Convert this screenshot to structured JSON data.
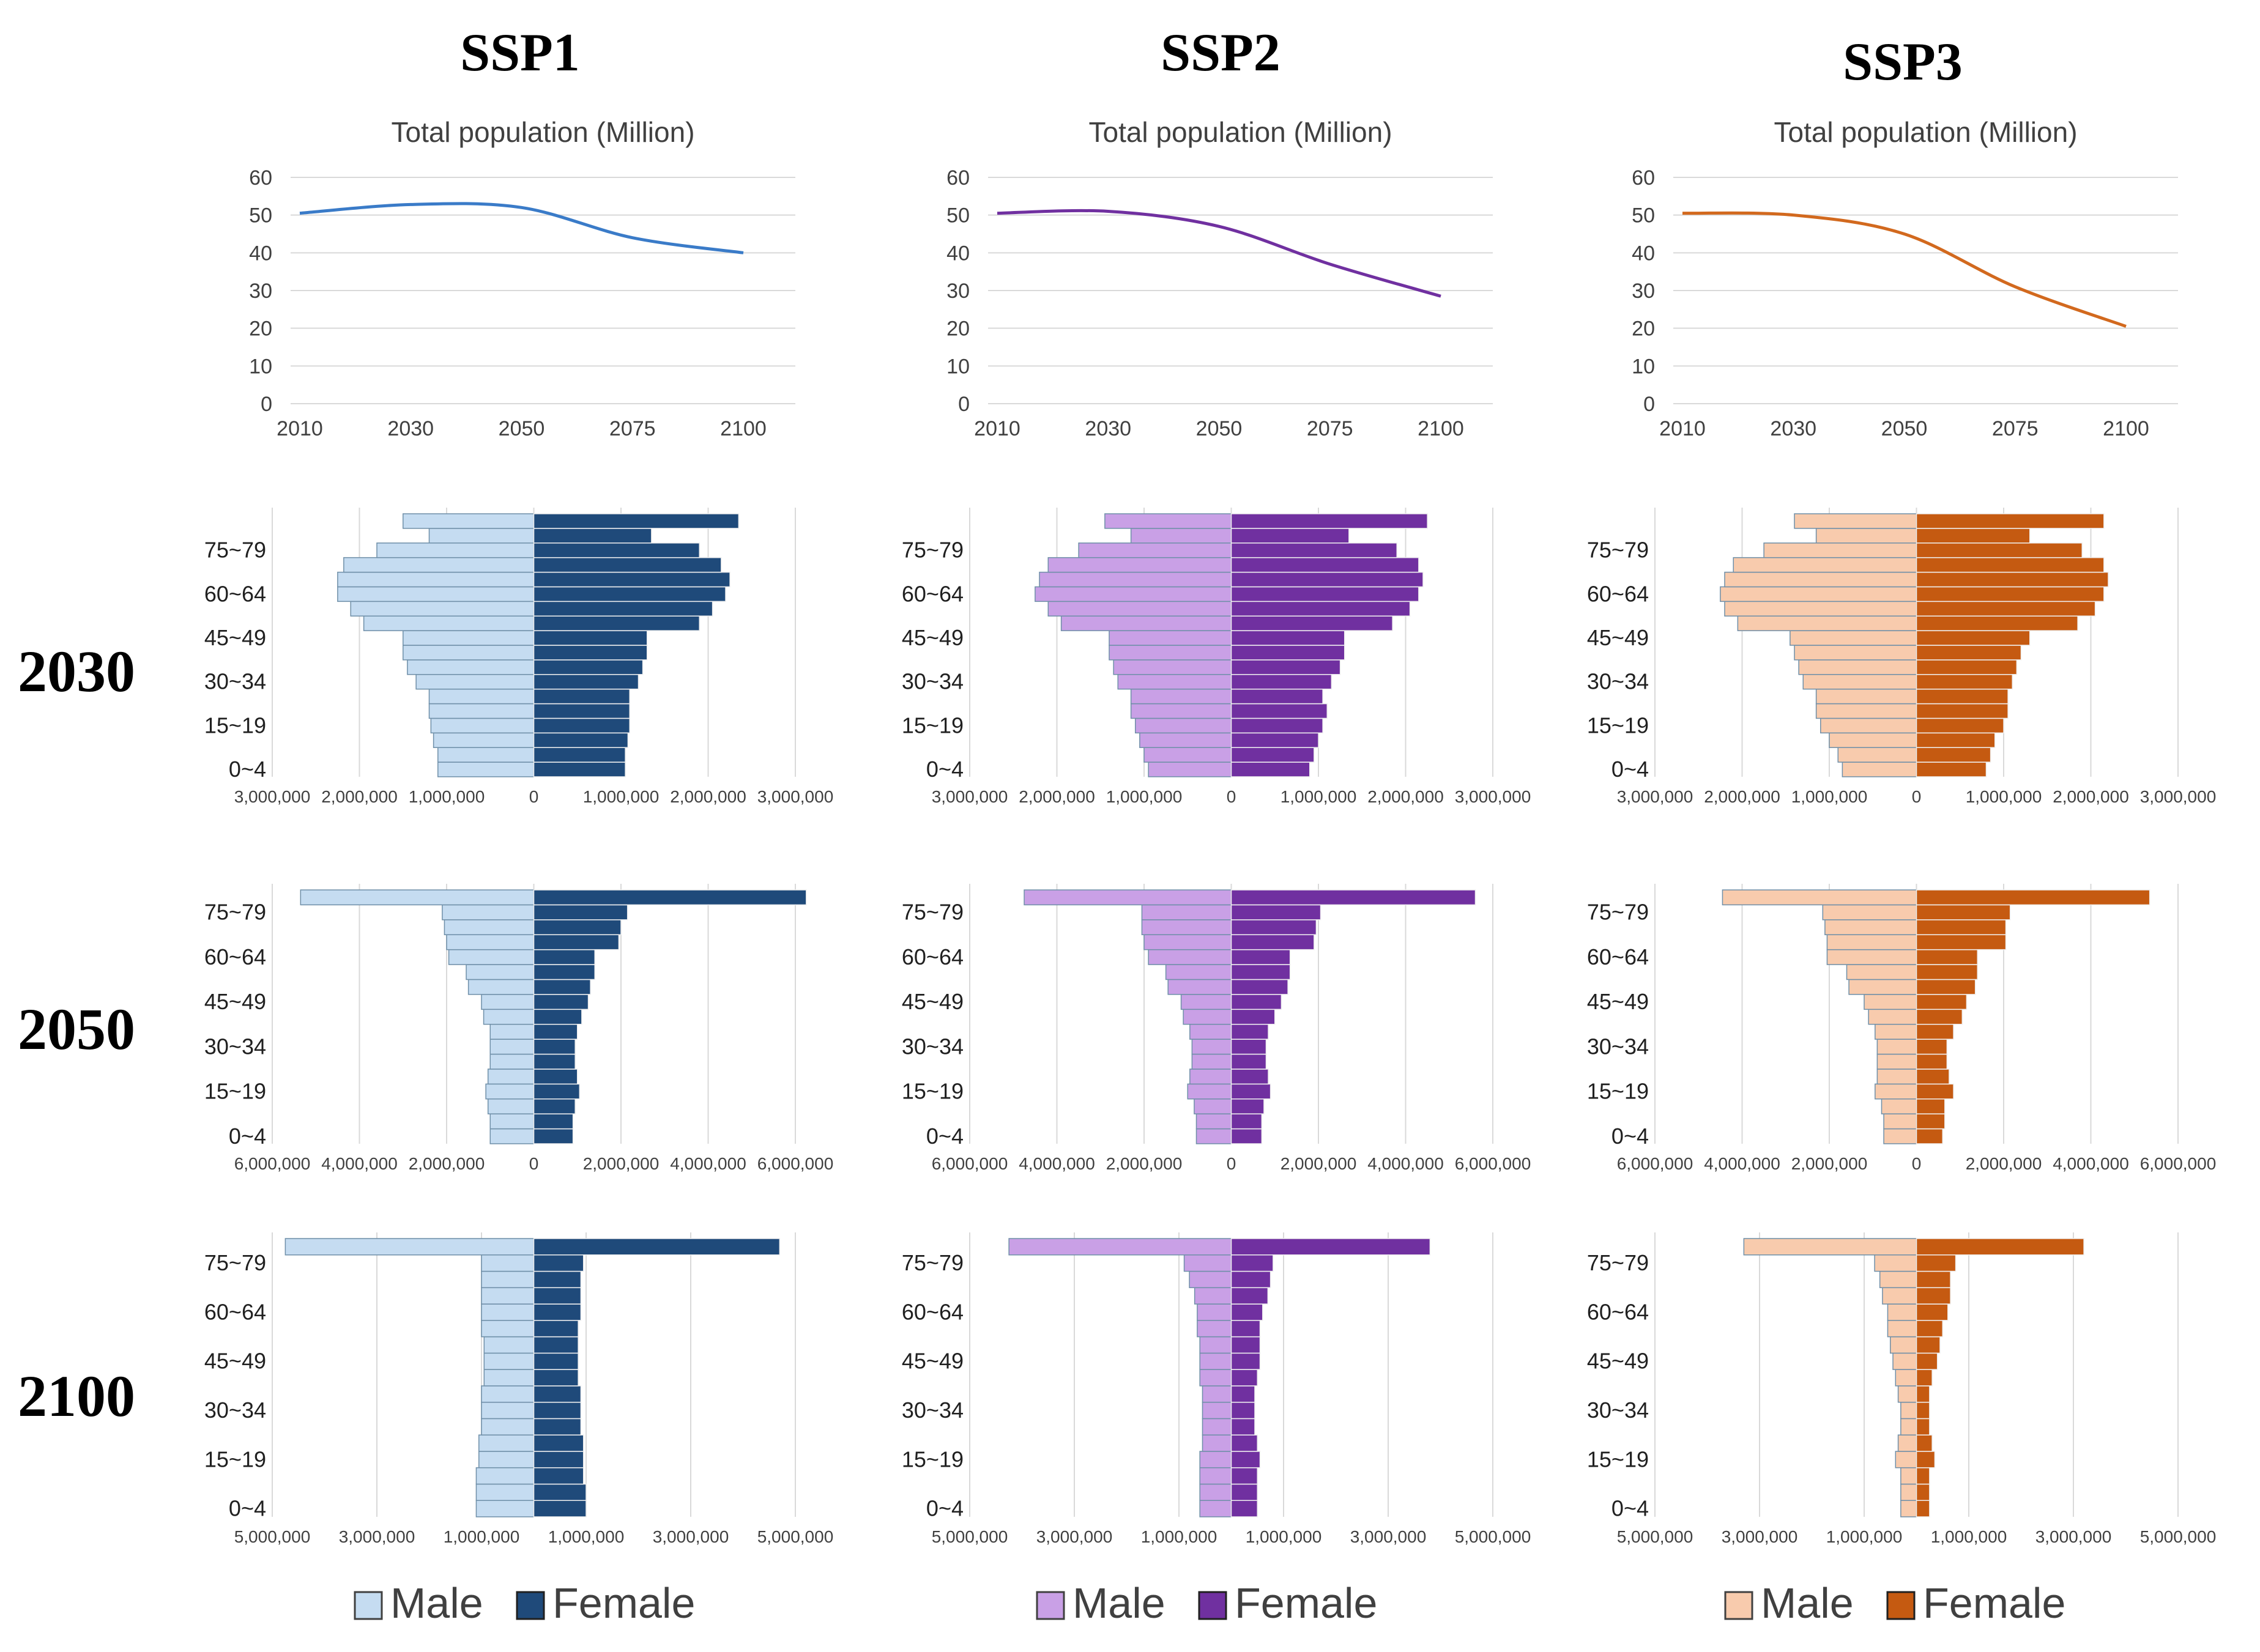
{
  "figure": {
    "scenario_labels": [
      "SSP1",
      "SSP2",
      "SSP3"
    ],
    "year_labels": [
      "2030",
      "2050",
      "2100"
    ],
    "legends": [
      {
        "male": "Male",
        "female": "Female"
      },
      {
        "male": "Male",
        "female": "Female"
      },
      {
        "male": "Male",
        "female": "Female"
      }
    ]
  },
  "colors": {
    "ssp1": {
      "line": "#3a7bc8",
      "male": "#c5dcf1",
      "female": "#1f4a7a"
    },
    "ssp2": {
      "line": "#7030a0",
      "male": "#c9a0e6",
      "female": "#7030a0"
    },
    "ssp3": {
      "line": "#d2691e",
      "male": "#f8cbad",
      "female": "#c55a11"
    }
  },
  "chart_data": [
    {
      "type": "line",
      "scenario": "SSP1",
      "title": "Total population (Million)",
      "x": [
        2010,
        2030,
        2050,
        2075,
        2100
      ],
      "y": [
        50.5,
        52.8,
        52,
        44,
        40
      ],
      "ylim": [
        0,
        60
      ],
      "yticks": [
        "0",
        "10",
        "20",
        "30",
        "40",
        "50",
        "60"
      ],
      "xtick_labels": [
        "2010",
        "2030",
        "2050",
        "2075",
        "2100"
      ]
    },
    {
      "type": "line",
      "scenario": "SSP2",
      "title": "Total population (Million)",
      "x": [
        2010,
        2030,
        2050,
        2075,
        2100
      ],
      "y": [
        50.5,
        51,
        47,
        37,
        28.5
      ],
      "ylim": [
        0,
        60
      ],
      "yticks": [
        "0",
        "10",
        "20",
        "30",
        "40",
        "50",
        "60"
      ],
      "xtick_labels": [
        "2010",
        "2030",
        "2050",
        "2075",
        "2100"
      ]
    },
    {
      "type": "line",
      "scenario": "SSP3",
      "title": "Total population (Million)",
      "x": [
        2010,
        2030,
        2050,
        2075,
        2100
      ],
      "y": [
        50.5,
        50,
        45,
        31,
        20.5
      ],
      "ylim": [
        0,
        60
      ],
      "yticks": [
        "0",
        "10",
        "20",
        "30",
        "40",
        "50",
        "60"
      ],
      "xtick_labels": [
        "2010",
        "2030",
        "2050",
        "2075",
        "2100"
      ]
    },
    {
      "type": "bar",
      "subtype": "population-pyramid",
      "scenario": "SSP1",
      "year": "2030",
      "age_labels": [
        "0~4",
        "15~19",
        "30~34",
        "45~49",
        "60~64",
        "75~79"
      ],
      "male": [
        1100000,
        1100000,
        1150000,
        1180000,
        1200000,
        1200000,
        1350000,
        1450000,
        1500000,
        1500000,
        1950000,
        2100000,
        2250000,
        2250000,
        2180000,
        1800000,
        1200000,
        1500000
      ],
      "female": [
        1050000,
        1050000,
        1080000,
        1100000,
        1100000,
        1100000,
        1200000,
        1250000,
        1300000,
        1300000,
        1900000,
        2050000,
        2200000,
        2250000,
        2150000,
        1900000,
        1350000,
        2350000
      ],
      "xlim": [
        -3000000,
        3000000
      ],
      "xtick_labels": [
        "3,000,000",
        "2,000,000",
        "1,000,000",
        "0",
        "1,000,000",
        "2,000,000",
        "3,000,000"
      ]
    },
    {
      "type": "bar",
      "subtype": "population-pyramid",
      "scenario": "SSP2",
      "year": "2030",
      "age_labels": [
        "0~4",
        "15~19",
        "30~34",
        "45~49",
        "60~64",
        "75~79"
      ],
      "male": [
        950000,
        1000000,
        1050000,
        1100000,
        1150000,
        1150000,
        1300000,
        1350000,
        1400000,
        1400000,
        1950000,
        2100000,
        2250000,
        2200000,
        2100000,
        1750000,
        1150000,
        1450000
      ],
      "female": [
        900000,
        950000,
        1000000,
        1050000,
        1100000,
        1050000,
        1150000,
        1250000,
        1300000,
        1300000,
        1850000,
        2050000,
        2150000,
        2200000,
        2150000,
        1900000,
        1350000,
        2250000
      ],
      "xlim": [
        -3000000,
        3000000
      ],
      "xtick_labels": [
        "3,000,000",
        "2,000,000",
        "1,000,000",
        "0",
        "1,000,000",
        "2,000,000",
        "3,000,000"
      ]
    },
    {
      "type": "bar",
      "subtype": "population-pyramid",
      "scenario": "SSP3",
      "year": "2030",
      "age_labels": [
        "0~4",
        "15~19",
        "30~34",
        "45~49",
        "60~64",
        "75~79"
      ],
      "male": [
        850000,
        900000,
        1000000,
        1100000,
        1150000,
        1150000,
        1300000,
        1350000,
        1400000,
        1450000,
        2050000,
        2200000,
        2250000,
        2200000,
        2100000,
        1750000,
        1150000,
        1400000
      ],
      "female": [
        800000,
        850000,
        900000,
        1000000,
        1050000,
        1050000,
        1100000,
        1150000,
        1200000,
        1300000,
        1850000,
        2050000,
        2150000,
        2200000,
        2150000,
        1900000,
        1300000,
        2150000
      ],
      "xlim": [
        -3000000,
        3000000
      ],
      "xtick_labels": [
        "3,000,000",
        "2,000,000",
        "1,000,000",
        "0",
        "1,000,000",
        "2,000,000",
        "3,000,000"
      ]
    },
    {
      "type": "bar",
      "subtype": "population-pyramid",
      "scenario": "SSP1",
      "year": "2050",
      "age_labels": [
        "0~4",
        "15~19",
        "30~34",
        "45~49",
        "60~64",
        "75~79"
      ],
      "male": [
        1000000,
        1000000,
        1050000,
        1100000,
        1050000,
        1000000,
        1000000,
        1000000,
        1150000,
        1200000,
        1500000,
        1550000,
        1950000,
        2000000,
        2050000,
        2100000,
        5350000
      ],
      "female": [
        900000,
        900000,
        950000,
        1050000,
        1000000,
        950000,
        950000,
        1000000,
        1100000,
        1250000,
        1300000,
        1400000,
        1400000,
        1950000,
        2000000,
        2150000,
        6250000
      ],
      "xlim": [
        -6000000,
        6000000
      ],
      "xtick_labels": [
        "6,000,000",
        "4,000,000",
        "2,000,000",
        "0",
        "2,000,000",
        "4,000,000",
        "6,000,000"
      ]
    },
    {
      "type": "bar",
      "subtype": "population-pyramid",
      "scenario": "SSP2",
      "year": "2050",
      "age_labels": [
        "0~4",
        "15~19",
        "30~34",
        "45~49",
        "60~64",
        "75~79"
      ],
      "male": [
        800000,
        800000,
        850000,
        1000000,
        950000,
        900000,
        900000,
        950000,
        1100000,
        1150000,
        1450000,
        1500000,
        1900000,
        2000000,
        2050000,
        2050000,
        4750000
      ],
      "female": [
        700000,
        700000,
        750000,
        900000,
        850000,
        800000,
        800000,
        850000,
        1000000,
        1150000,
        1300000,
        1350000,
        1350000,
        1900000,
        1950000,
        2050000,
        5600000
      ],
      "xlim": [
        -6000000,
        6000000
      ],
      "xtick_labels": [
        "6,000,000",
        "4,000,000",
        "2,000,000",
        "0",
        "2,000,000",
        "4,000,000",
        "6,000,000"
      ]
    },
    {
      "type": "bar",
      "subtype": "population-pyramid",
      "scenario": "SSP3",
      "year": "2050",
      "age_labels": [
        "0~4",
        "15~19",
        "30~34",
        "45~49",
        "60~64",
        "75~79"
      ],
      "male": [
        750000,
        750000,
        800000,
        950000,
        900000,
        900000,
        900000,
        950000,
        1100000,
        1200000,
        1550000,
        1600000,
        2050000,
        2050000,
        2100000,
        2150000,
        4450000
      ],
      "female": [
        600000,
        650000,
        650000,
        850000,
        750000,
        700000,
        700000,
        850000,
        1050000,
        1150000,
        1350000,
        1400000,
        1400000,
        2050000,
        2050000,
        2150000,
        5350000
      ],
      "xlim": [
        -6000000,
        6000000
      ],
      "xtick_labels": [
        "6,000,000",
        "4,000,000",
        "2,000,000",
        "0",
        "2,000,000",
        "4,000,000",
        "6,000,000"
      ]
    },
    {
      "type": "bar",
      "subtype": "population-pyramid",
      "scenario": "SSP1",
      "year": "2100",
      "age_labels": [
        "0~4",
        "15~19",
        "30~34",
        "45~49",
        "60~64",
        "75~79"
      ],
      "male": [
        1100000,
        1100000,
        1100000,
        1050000,
        1050000,
        1000000,
        1000000,
        1000000,
        950000,
        950000,
        950000,
        1000000,
        1000000,
        1000000,
        1000000,
        1000000,
        4750000
      ],
      "female": [
        1000000,
        1000000,
        950000,
        950000,
        950000,
        900000,
        900000,
        900000,
        850000,
        850000,
        850000,
        850000,
        900000,
        900000,
        900000,
        950000,
        4700000
      ],
      "xlim": [
        -5000000,
        5000000
      ],
      "xtick_labels": [
        "5,000,000",
        "3,000,000",
        "1,000,000",
        "1,000,000",
        "3,000,000",
        "5,000,000"
      ]
    },
    {
      "type": "bar",
      "subtype": "population-pyramid",
      "scenario": "SSP2",
      "year": "2100",
      "age_labels": [
        "0~4",
        "15~19",
        "30~34",
        "45~49",
        "60~64",
        "75~79"
      ],
      "male": [
        600000,
        600000,
        600000,
        600000,
        550000,
        550000,
        550000,
        550000,
        600000,
        600000,
        600000,
        650000,
        650000,
        700000,
        800000,
        900000,
        4250000
      ],
      "female": [
        500000,
        500000,
        500000,
        550000,
        500000,
        450000,
        450000,
        450000,
        500000,
        550000,
        550000,
        550000,
        600000,
        700000,
        750000,
        800000,
        3800000
      ],
      "xlim": [
        -5000000,
        5000000
      ],
      "xtick_labels": [
        "5,000,000",
        "3,000,000",
        "1,000,000",
        "1,000,000",
        "3,000,000",
        "5,000,000"
      ]
    },
    {
      "type": "bar",
      "subtype": "population-pyramid",
      "scenario": "SSP3",
      "year": "2100",
      "age_labels": [
        "0~4",
        "15~19",
        "30~34",
        "45~49",
        "60~64",
        "75~79"
      ],
      "male": [
        300000,
        300000,
        300000,
        400000,
        350000,
        300000,
        300000,
        350000,
        400000,
        450000,
        500000,
        550000,
        550000,
        650000,
        700000,
        800000,
        3300000
      ],
      "female": [
        250000,
        250000,
        250000,
        350000,
        300000,
        250000,
        250000,
        250000,
        300000,
        400000,
        450000,
        500000,
        600000,
        650000,
        650000,
        750000,
        3200000
      ],
      "xlim": [
        -5000000,
        5000000
      ],
      "xtick_labels": [
        "5,000,000",
        "3,000,000",
        "1,000,000",
        "1,000,000",
        "3,000,000",
        "5,000,000"
      ]
    }
  ]
}
